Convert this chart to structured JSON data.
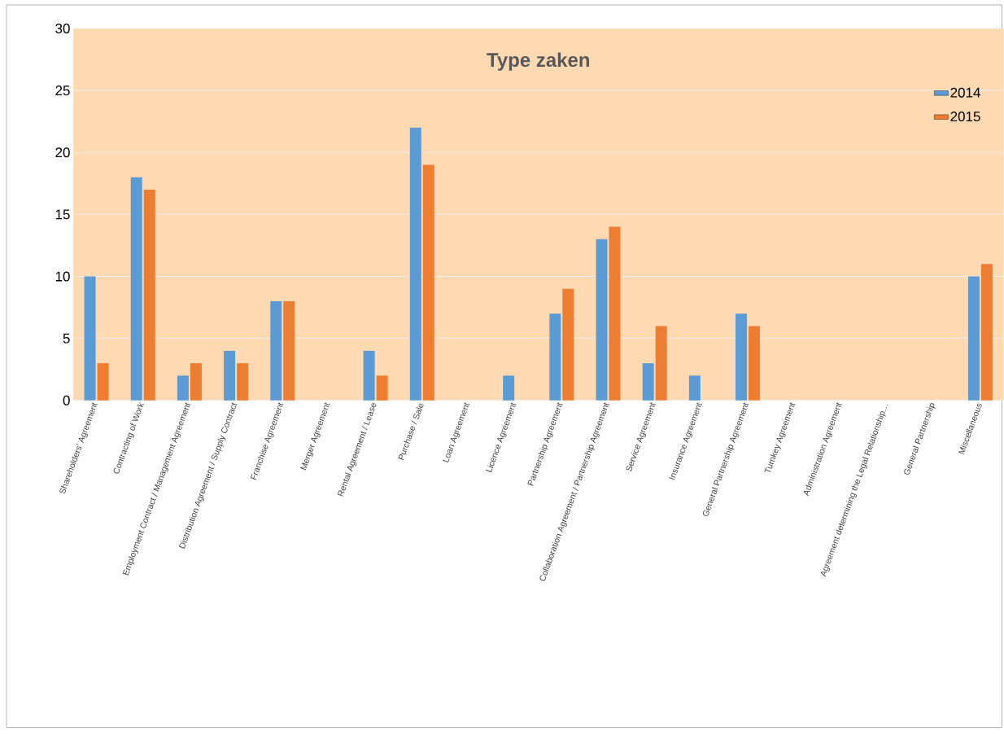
{
  "chart_data": {
    "type": "bar",
    "title": "Type zaken",
    "categories": [
      "Shareholders' Agreement",
      "Contracting of Work",
      "Employment Contract / Management Agreement",
      "Distribution Agreement / Supply Contract",
      "Franchise Agreement",
      "Merger Agreement",
      "Rental Agreement / Lease",
      "Purchase / Sale",
      "Loan Agreement",
      "Licence Agreement",
      "Partnership Agreement",
      "Collaboration Agreement / Partnership Agreement",
      "Service Agreement",
      "Insurance Agreement",
      "General Partnership Agreement",
      "Turnkey Agreement",
      "Administration Agreement",
      "Agreement determining the Legal Relationship…",
      "General Partnership",
      "Miscellaneous"
    ],
    "series": [
      {
        "name": "2014",
        "color": "#5b9bd5",
        "values": [
          10,
          18,
          2,
          4,
          8,
          0,
          4,
          22,
          0,
          2,
          7,
          13,
          3,
          2,
          7,
          0,
          0,
          0,
          0,
          10
        ]
      },
      {
        "name": "2015",
        "color": "#ed7d31",
        "values": [
          3,
          17,
          3,
          3,
          8,
          0,
          2,
          19,
          0,
          0,
          9,
          14,
          6,
          0,
          6,
          0,
          0,
          0,
          0,
          11
        ]
      }
    ],
    "ylim": [
      0,
      30
    ],
    "yticks": [
      0,
      5,
      10,
      15,
      20,
      25,
      30
    ],
    "grid": "y",
    "legend": "top right"
  }
}
